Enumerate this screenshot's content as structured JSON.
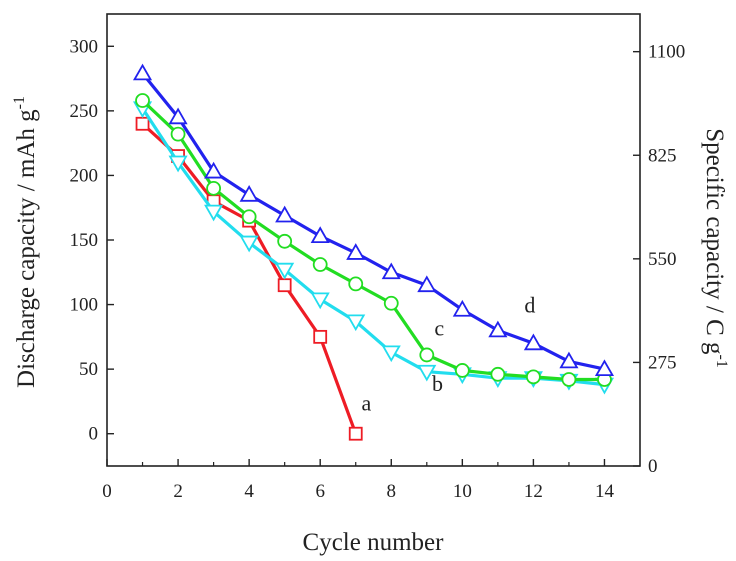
{
  "chart_data": {
    "type": "line",
    "title": "",
    "xlabel": "Cycle number",
    "ylabel": "Discharge capacity / mAh g",
    "ylabel_sup": "-1",
    "y2label": "Specific capacity / C g",
    "y2label_sup": "-1",
    "xlim": [
      0,
      15
    ],
    "ylim": [
      -25,
      325
    ],
    "y2lim": [
      0,
      1200
    ],
    "xticks": [
      0,
      2,
      4,
      6,
      8,
      10,
      12,
      14
    ],
    "yticks": [
      0,
      50,
      100,
      150,
      200,
      250,
      300
    ],
    "y2ticks": [
      0,
      275,
      550,
      825,
      1100
    ],
    "grid": false,
    "series": [
      {
        "name": "a",
        "color": "#ee1c25",
        "marker": "square",
        "x": [
          1,
          2,
          3,
          4,
          5,
          6,
          7
        ],
        "y": [
          240,
          215,
          180,
          165,
          115,
          75,
          0
        ]
      },
      {
        "name": "b",
        "color": "#22ddee",
        "marker": "triangle-down",
        "x": [
          1,
          2,
          3,
          4,
          5,
          6,
          7,
          8,
          9,
          10,
          11,
          12,
          13,
          14
        ],
        "y": [
          252,
          210,
          172,
          148,
          127,
          104,
          87,
          63,
          48,
          46,
          43,
          43,
          41,
          38
        ]
      },
      {
        "name": "c",
        "color": "#22dd22",
        "marker": "circle",
        "x": [
          1,
          2,
          3,
          4,
          5,
          6,
          7,
          8,
          9,
          10,
          11,
          12,
          13,
          14
        ],
        "y": [
          258,
          232,
          190,
          168,
          149,
          131,
          116,
          101,
          61,
          49,
          46,
          44,
          42,
          42
        ]
      },
      {
        "name": "d",
        "color": "#2222ee",
        "marker": "triangle-up",
        "x": [
          1,
          2,
          3,
          4,
          5,
          6,
          7,
          8,
          9,
          10,
          11,
          12,
          13,
          14
        ],
        "y": [
          279,
          245,
          203,
          185,
          169,
          153,
          140,
          125,
          115,
          96,
          80,
          70,
          56,
          50
        ]
      }
    ],
    "annotations": [
      {
        "text": "a",
        "x": 7.3,
        "y": 18
      },
      {
        "text": "b",
        "x": 9.3,
        "y": 33
      },
      {
        "text": "c",
        "x": 9.35,
        "y": 76
      },
      {
        "text": "d",
        "x": 11.9,
        "y": 94
      }
    ]
  }
}
